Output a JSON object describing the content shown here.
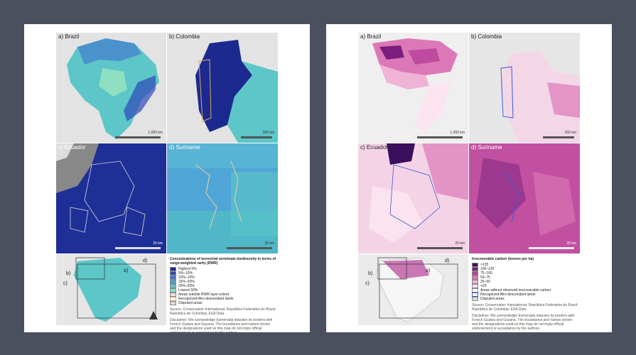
{
  "left_page": {
    "panels": [
      {
        "label": "a) Brazil",
        "scale": "1,000 km"
      },
      {
        "label": "b) Colombia",
        "scale": "300 km"
      },
      {
        "label": "c) Ecuador",
        "scale": ""
      },
      {
        "label": "d) Suriname",
        "scale": "20 km"
      }
    ],
    "ecuador_scale": "20 km",
    "inset_labels": [
      "a)",
      "b)",
      "c)",
      "d)"
    ],
    "legend": {
      "title": "Concentrations of terrestrial vertebrate biodiversity in terms of range-weighted rarity (RWR)",
      "items": [
        {
          "label": "Highest 5%",
          "color": "#1c2a8f"
        },
        {
          "label": "5%–10%",
          "color": "#2f47b8"
        },
        {
          "label": "10%–15%",
          "color": "#3f6fd0"
        },
        {
          "label": "15%–20%",
          "color": "#4fa0d8"
        },
        {
          "label": "20%–50%",
          "color": "#5cc6c8"
        },
        {
          "label": "Lowest 50%",
          "color": "#8fe0c2"
        },
        {
          "label": "Areas outside RWR layer extent",
          "color": "#e4e4e4"
        },
        {
          "label": "Recognized Afro-descendant lands",
          "color": "#ffffff"
        },
        {
          "label": "Disputed areas",
          "color": "#d9d9d9"
        }
      ],
      "source": "Source: Conservation International; República Federativa do Brasil; República de Colombia; ESA Data.",
      "disclaimer": "Disclaimer: We acknowledge Esmeralda disputes its borders with French Guiana and Guyana. The boundaries and names shown and the designations used on this map do not imply official endorsement or acceptance by the authors."
    }
  },
  "right_page": {
    "panels": [
      {
        "label": "a) Brazil",
        "scale": "1,000 km"
      },
      {
        "label": "b) Colombia",
        "scale": "300 km"
      },
      {
        "label": "c) Ecuador",
        "scale": "20 km"
      },
      {
        "label": "d) Suriname",
        "scale": "20 km"
      }
    ],
    "inset_labels": [
      "a)",
      "b)",
      "c)",
      "d)"
    ],
    "legend": {
      "title": "Irrecoverable carbon (tonnes per ha)",
      "items": [
        {
          "label": ">125",
          "color": "#3b0f5c"
        },
        {
          "label": "100–125",
          "color": "#7a1f7e"
        },
        {
          "label": "75–100",
          "color": "#b7409a"
        },
        {
          "label": "50–75",
          "color": "#dd78b8"
        },
        {
          "label": "25–50",
          "color": "#efb3d6"
        },
        {
          "label": "<25",
          "color": "#fbe3ef"
        },
        {
          "label": "Areas without observed irrecoverable carbon",
          "color": "#ffffff"
        },
        {
          "label": "Recognized Afro-descendant lands",
          "color": "#ffffff"
        },
        {
          "label": "Disputed areas",
          "color": "#d9d9d9"
        }
      ],
      "source": "Source: Conservation International; República Federativa do Brasil; República de Colombia; ESA Data.",
      "disclaimer": "Disclaimer: We acknowledge Esmeralda disputes its borders with French Guiana and Guyana. The boundaries and names shown and the designations used on this map do not imply official endorsement or acceptance by the authors."
    }
  }
}
